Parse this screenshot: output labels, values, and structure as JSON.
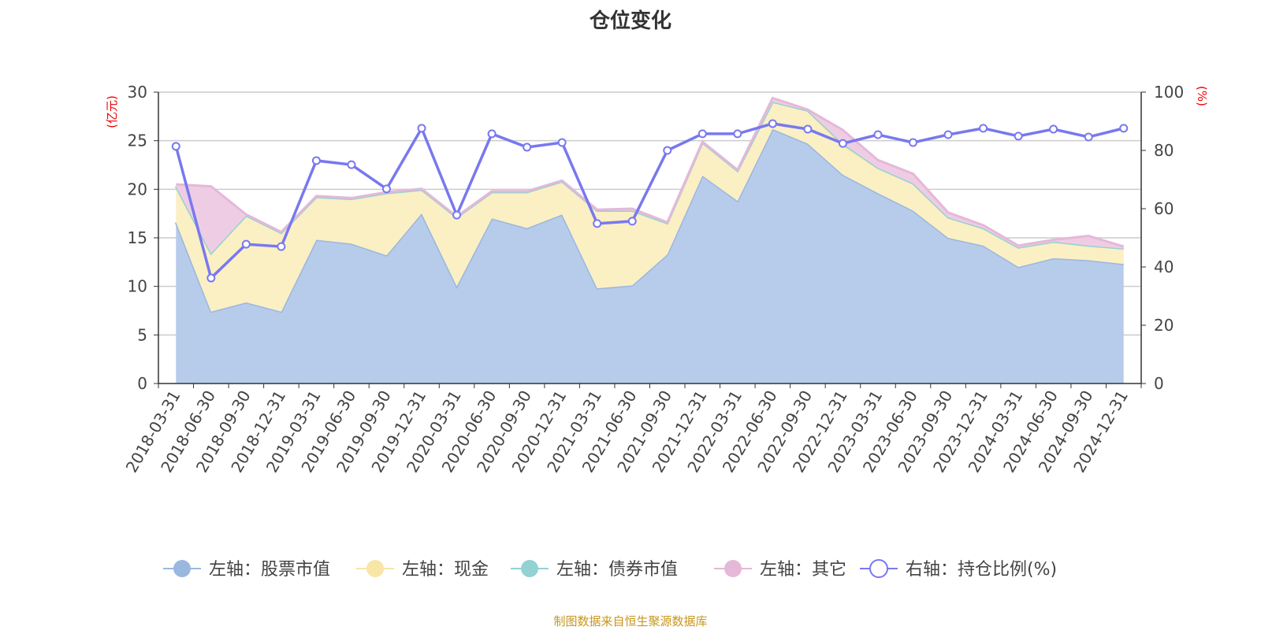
{
  "chart_data": {
    "type": "area",
    "title": "仓位变化",
    "left_unit": "(亿元)",
    "right_unit": "(%)",
    "left_ylim": [
      0,
      30
    ],
    "left_ticks": [
      0,
      5,
      10,
      15,
      20,
      25,
      30
    ],
    "right_ylim": [
      0,
      100
    ],
    "right_ticks": [
      0,
      20,
      40,
      60,
      80,
      100
    ],
    "grid": true,
    "legend_placement": "bottom",
    "categories": [
      "2018-03-31",
      "2018-06-30",
      "2018-09-30",
      "2018-12-31",
      "2019-03-31",
      "2019-06-30",
      "2019-09-30",
      "2019-12-31",
      "2020-03-31",
      "2020-06-30",
      "2020-09-30",
      "2020-12-31",
      "2021-03-31",
      "2021-06-30",
      "2021-09-30",
      "2021-12-31",
      "2022-03-31",
      "2022-06-30",
      "2022-09-30",
      "2022-12-31",
      "2023-03-31",
      "2023-06-30",
      "2023-09-30",
      "2023-12-31",
      "2024-03-31",
      "2024-06-30",
      "2024-09-30",
      "2024-12-31"
    ],
    "series": [
      {
        "name": "左轴：股票市值",
        "axis": "left",
        "stack": true,
        "color": "#9ab7e0",
        "fill": "#b7cceb",
        "values": [
          16.6,
          7.4,
          8.35,
          7.4,
          14.8,
          14.4,
          13.2,
          17.5,
          10.0,
          17.0,
          16.0,
          17.4,
          9.8,
          10.1,
          13.3,
          21.4,
          18.8,
          26.2,
          24.7,
          21.5,
          19.6,
          17.8,
          15.0,
          14.2,
          12.0,
          12.9,
          12.7,
          12.3
        ]
      },
      {
        "name": "左轴：现金",
        "axis": "left",
        "stack": true,
        "color": "#f7e6a6",
        "fill": "#fbefc4",
        "values": [
          3.7,
          6.0,
          8.95,
          8.1,
          4.4,
          4.6,
          6.4,
          2.45,
          7.1,
          2.7,
          3.7,
          3.4,
          8.0,
          7.7,
          3.2,
          3.4,
          3.1,
          2.8,
          3.4,
          3.0,
          2.6,
          2.8,
          2.1,
          1.8,
          2.0,
          1.7,
          1.5,
          1.6
        ]
      },
      {
        "name": "左轴：债券市值",
        "axis": "left",
        "stack": true,
        "color": "#93d2d3",
        "fill": "#b3e0e0",
        "values": [
          0,
          0,
          0,
          0,
          0,
          0,
          0,
          0,
          0,
          0,
          0,
          0,
          0,
          0,
          0,
          0,
          0,
          0,
          0,
          0.2,
          0,
          0,
          0,
          0,
          0,
          0,
          0,
          0
        ]
      },
      {
        "name": "左轴：其它",
        "axis": "left",
        "stack": true,
        "color": "#e5b8d8",
        "fill": "#eecde4",
        "values": [
          0.2,
          6.9,
          0.1,
          0.1,
          0.1,
          0.1,
          0.1,
          0.1,
          0.1,
          0.1,
          0.1,
          0.1,
          0.1,
          0.2,
          0.1,
          0.1,
          0.1,
          0.4,
          0.1,
          1.4,
          0.8,
          1.0,
          0.5,
          0.3,
          0.2,
          0.2,
          1.0,
          0.2
        ]
      },
      {
        "name": "右轴：持仓比例(%)",
        "axis": "right",
        "stack": false,
        "color": "#7878f0",
        "values": [
          81.4,
          36.2,
          47.8,
          47.0,
          76.5,
          75.1,
          66.8,
          87.6,
          57.8,
          85.7,
          81.1,
          82.7,
          54.9,
          55.7,
          80.0,
          85.7,
          85.7,
          89.2,
          87.3,
          82.4,
          85.4,
          82.7,
          85.4,
          87.6,
          84.9,
          87.3,
          84.6,
          87.6
        ]
      }
    ]
  },
  "source": "制图数据来自恒生聚源数据库"
}
